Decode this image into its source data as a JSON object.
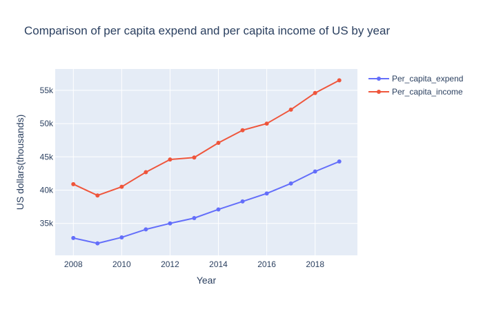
{
  "chart_data": {
    "type": "line",
    "title": "Comparison of per capita expend and per capita income of US by year",
    "xlabel": "Year",
    "ylabel": "US dollars(thousands)",
    "x": [
      2008,
      2009,
      2010,
      2011,
      2012,
      2013,
      2014,
      2015,
      2016,
      2017,
      2018,
      2019
    ],
    "xlim": [
      2007.25,
      2019.75
    ],
    "ylim": [
      30200,
      58200
    ],
    "xticks": [
      2008,
      2010,
      2012,
      2014,
      2016,
      2018
    ],
    "xtick_labels": [
      "2008",
      "2010",
      "2012",
      "2014",
      "2016",
      "2018"
    ],
    "yticks": [
      35000,
      40000,
      45000,
      50000,
      55000
    ],
    "ytick_labels": [
      "35k",
      "40k",
      "45k",
      "50k",
      "55k"
    ],
    "grid": true,
    "legend_position": "top-right",
    "series": [
      {
        "name": "Per_capita_expend",
        "color": "#636efa",
        "values": [
          32800,
          32000,
          32900,
          34100,
          35000,
          35800,
          37100,
          38300,
          39500,
          41000,
          42800,
          44300
        ]
      },
      {
        "name": "Per_capita_income",
        "color": "#ef553b",
        "values": [
          40900,
          39200,
          40500,
          42700,
          44600,
          44900,
          47100,
          49000,
          50000,
          52100,
          54600,
          56500
        ]
      }
    ],
    "colors": {
      "plot_background": "#e5ecf6",
      "grid": "#ffffff",
      "text": "#2a3f5f"
    }
  }
}
